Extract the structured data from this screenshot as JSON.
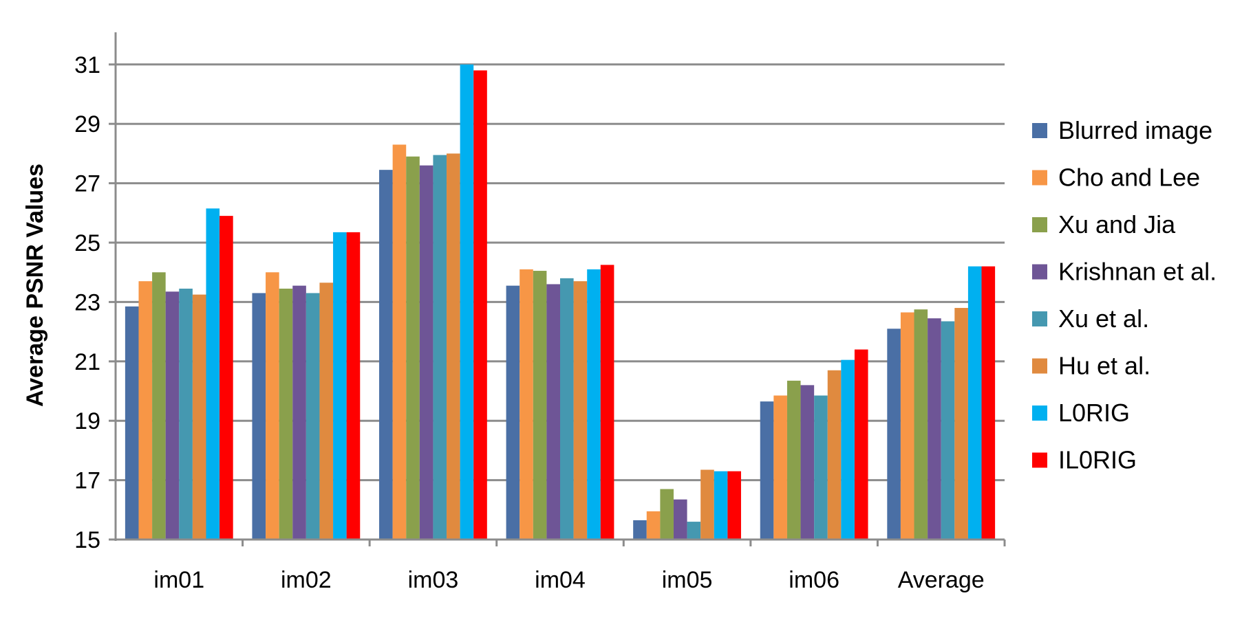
{
  "chart_data": {
    "type": "bar",
    "ylabel": "Average PSNR Values",
    "xlabel": "",
    "ylim": [
      15,
      32
    ],
    "yticks": [
      15,
      17,
      19,
      21,
      23,
      25,
      27,
      29,
      31
    ],
    "grid": true,
    "legend_position": "right",
    "categories": [
      "im01",
      "im02",
      "im03",
      "im04",
      "im05",
      "im06",
      "Average"
    ],
    "series": [
      {
        "name": "Blurred image",
        "color": "#4a6fa5",
        "values": [
          22.85,
          23.3,
          27.45,
          23.55,
          15.65,
          19.65,
          22.1
        ]
      },
      {
        "name": "Cho and Lee",
        "color": "#f79646",
        "values": [
          23.7,
          24.0,
          28.3,
          24.1,
          15.95,
          19.85,
          22.65
        ]
      },
      {
        "name": "Xu and Jia",
        "color": "#8aa04c",
        "values": [
          24.0,
          23.45,
          27.9,
          24.05,
          16.7,
          20.35,
          22.75
        ]
      },
      {
        "name": "Krishnan et al.",
        "color": "#6e5596",
        "values": [
          23.35,
          23.55,
          27.6,
          23.6,
          16.35,
          20.2,
          22.45
        ]
      },
      {
        "name": "Xu et al.",
        "color": "#4598b0",
        "values": [
          23.45,
          23.3,
          27.95,
          23.8,
          15.6,
          19.85,
          22.35
        ]
      },
      {
        "name": "Hu et al.",
        "color": "#e08a3f",
        "values": [
          23.25,
          23.65,
          28.0,
          23.7,
          17.35,
          20.7,
          22.8
        ]
      },
      {
        "name": "L0RIG",
        "color": "#00b0f0",
        "values": [
          26.15,
          25.35,
          31.0,
          24.1,
          17.3,
          21.05,
          24.2
        ]
      },
      {
        "name": "IL0RIG",
        "color": "#ff0000",
        "values": [
          25.9,
          25.35,
          30.8,
          24.25,
          17.3,
          21.4,
          24.2
        ]
      }
    ]
  }
}
